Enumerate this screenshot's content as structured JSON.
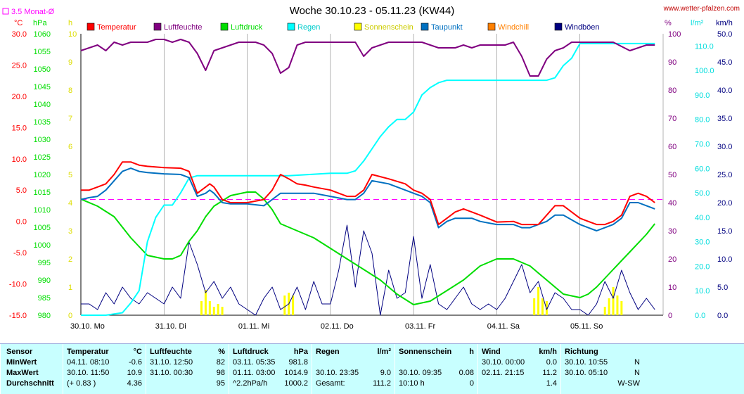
{
  "title": "Woche 30.10.23 - 05.11.23 (KW44)",
  "website": "www.wetter-pfalzen.com",
  "monthly_avg_label": "3.5 Monat-Ø",
  "colors": {
    "temperatur": "#ff0000",
    "luftfeuchte": "#800080",
    "luftdruck": "#00dd00",
    "regen": "#00ffff",
    "sonnenschein": "#ffff00",
    "taupunkt": "#0070c0",
    "windchill": "#ff8000",
    "windboeen": "#000080",
    "monthly_avg": "#ff00ff"
  },
  "axes": {
    "temp": {
      "unit": "°C",
      "ticks": [
        "30.0",
        "25.0",
        "20.0",
        "15.0",
        "10.0",
        "5.0",
        "0.0",
        "-5.0",
        "-10.0",
        "-15.0"
      ],
      "min": -15,
      "max": 30
    },
    "pressure": {
      "unit": "hPa",
      "ticks": [
        "1060",
        "1055",
        "1050",
        "1045",
        "1040",
        "1035",
        "1030",
        "1025",
        "1020",
        "1015",
        "1010",
        "1005",
        "1000",
        "995",
        "990",
        "985",
        "980"
      ],
      "min": 980,
      "max": 1060
    },
    "sun": {
      "unit": "h",
      "ticks": [
        "10",
        "9",
        "8",
        "7",
        "6",
        "5",
        "4",
        "3",
        "2",
        "1",
        "0"
      ],
      "min": 0,
      "max": 10
    },
    "humidity": {
      "unit": "%",
      "ticks": [
        "100",
        "90",
        "80",
        "70",
        "60",
        "50",
        "40",
        "30",
        "20",
        "10",
        "0"
      ],
      "min": 0,
      "max": 100
    },
    "rain": {
      "unit": "l/m²",
      "ticks": [
        "110.0",
        "100.0",
        "90.0",
        "80.0",
        "70.0",
        "60.0",
        "50.0",
        "40.0",
        "30.0",
        "20.0",
        "10.0",
        "0.0"
      ],
      "min": 0,
      "max": 115
    },
    "wind": {
      "unit": "km/h",
      "ticks": [
        "50.0",
        "45.0",
        "40.0",
        "35.0",
        "30.0",
        "25.0",
        "20.0",
        "15.0",
        "10.0",
        "5.0",
        "0.0"
      ],
      "min": 0,
      "max": 50
    },
    "x_labels": [
      "30.10. Mo",
      "31.10. Di",
      "01.11. Mi",
      "02.11. Do",
      "03.11. Fr",
      "04.11. Sa",
      "05.11. So"
    ]
  },
  "legend": [
    {
      "key": "temperatur",
      "label": "Temperatur",
      "color": "#ff0000"
    },
    {
      "key": "luftfeuchte",
      "label": "Luftfeuchte",
      "color": "#800080"
    },
    {
      "key": "luftdruck",
      "label": "Luftdruck",
      "color": "#00dd00"
    },
    {
      "key": "regen",
      "label": "Regen",
      "color": "#00ffff"
    },
    {
      "key": "sonnenschein",
      "label": "Sonnenschein",
      "color": "#ffff00"
    },
    {
      "key": "taupunkt",
      "label": "Taupunkt",
      "color": "#0070c0"
    },
    {
      "key": "windchill",
      "label": "Windchill",
      "color": "#ff8000"
    },
    {
      "key": "windboeen",
      "label": "Windböen",
      "color": "#000080"
    }
  ],
  "chart_data": {
    "type": "line",
    "title": "Woche 30.10.23 - 05.11.23 (KW44)",
    "x_range_days": [
      0,
      7
    ],
    "x_labels": [
      "30.10. Mo",
      "31.10. Di",
      "01.11. Mi",
      "02.11. Do",
      "03.11. Fr",
      "04.11. Sa",
      "05.11. So"
    ],
    "monthly_avg_temp": 3.5,
    "series": [
      {
        "name": "Temperatur",
        "unit": "°C",
        "x": [
          0,
          0.1,
          0.2,
          0.3,
          0.4,
          0.5,
          0.6,
          0.7,
          0.8,
          1.0,
          1.2,
          1.3,
          1.4,
          1.5,
          1.55,
          1.6,
          1.7,
          1.8,
          1.9,
          2.0,
          2.2,
          2.3,
          2.4,
          2.5,
          2.6,
          2.7,
          2.8,
          3.0,
          3.2,
          3.3,
          3.4,
          3.5,
          3.7,
          3.9,
          4.0,
          4.1,
          4.2,
          4.3,
          4.4,
          4.5,
          4.6,
          4.7,
          4.8,
          5.0,
          5.2,
          5.3,
          5.4,
          5.5,
          5.6,
          5.7,
          5.8,
          6.0,
          6.1,
          6.2,
          6.3,
          6.4,
          6.5,
          6.6,
          6.7,
          6.8,
          6.9
        ],
        "y": [
          5.0,
          5.0,
          5.5,
          6.0,
          7.5,
          9.5,
          9.5,
          9.0,
          8.8,
          8.6,
          8.5,
          8.0,
          4.5,
          5.5,
          6.0,
          5.5,
          3.5,
          3.0,
          3.0,
          3.0,
          3.5,
          5.0,
          7.5,
          6.8,
          6.0,
          5.8,
          5.5,
          5.0,
          4.0,
          4.0,
          5.0,
          7.5,
          6.8,
          6.0,
          5.0,
          4.5,
          3.5,
          -0.5,
          0.5,
          1.5,
          2.0,
          1.5,
          1.0,
          -0.1,
          0.0,
          -0.5,
          -0.5,
          -0.5,
          1.0,
          2.5,
          2.5,
          0.5,
          0.0,
          -0.5,
          -0.5,
          0.0,
          1.0,
          4.0,
          4.5,
          4.0,
          3.0
        ]
      },
      {
        "name": "Luftfeuchte",
        "unit": "%",
        "x": [
          0,
          0.1,
          0.2,
          0.3,
          0.4,
          0.5,
          0.6,
          0.7,
          0.8,
          0.9,
          1.0,
          1.1,
          1.2,
          1.3,
          1.4,
          1.5,
          1.6,
          1.7,
          1.8,
          1.9,
          2.0,
          2.1,
          2.2,
          2.3,
          2.4,
          2.5,
          2.6,
          2.7,
          2.8,
          3.0,
          3.1,
          3.2,
          3.3,
          3.4,
          3.5,
          3.7,
          3.9,
          4.0,
          4.1,
          4.3,
          4.5,
          4.6,
          4.7,
          4.8,
          4.9,
          5.0,
          5.1,
          5.2,
          5.3,
          5.4,
          5.5,
          5.6,
          5.7,
          5.8,
          5.9,
          6.0,
          6.2,
          6.4,
          6.6,
          6.8,
          6.9
        ],
        "y": [
          94,
          95,
          96,
          94,
          97,
          96,
          97,
          97,
          97,
          98,
          98,
          97,
          98,
          97,
          93,
          87,
          94,
          95,
          96,
          97,
          97,
          97,
          96,
          93,
          86,
          88,
          96,
          97,
          97,
          97,
          97,
          97,
          97,
          92,
          95,
          97,
          97,
          97,
          97,
          95,
          95,
          96,
          95,
          96,
          96,
          96,
          96,
          97,
          92,
          85,
          85,
          91,
          94,
          95,
          97,
          97,
          97,
          97,
          94,
          96,
          96
        ]
      },
      {
        "name": "Luftdruck",
        "unit": "hPa",
        "x": [
          0,
          0.2,
          0.4,
          0.6,
          0.8,
          1.0,
          1.1,
          1.2,
          1.3,
          1.4,
          1.5,
          1.6,
          1.8,
          2.0,
          2.1,
          2.2,
          2.3,
          2.4,
          2.6,
          2.8,
          3.0,
          3.2,
          3.4,
          3.6,
          3.8,
          4.0,
          4.2,
          4.4,
          4.6,
          4.8,
          5.0,
          5.2,
          5.4,
          5.6,
          5.8,
          6.0,
          6.1,
          6.2,
          6.4,
          6.6,
          6.8,
          6.9
        ],
        "y": [
          1013,
          1011,
          1008,
          1002,
          997,
          996,
          996,
          997,
          1001,
          1004,
          1008,
          1011,
          1014,
          1015,
          1015,
          1013,
          1010,
          1006,
          1004,
          1002,
          999,
          996,
          993,
          990,
          986,
          983,
          984,
          987,
          990,
          994,
          996,
          996,
          994,
          990,
          986,
          985,
          986,
          988,
          993,
          998,
          1003,
          1006
        ]
      },
      {
        "name": "Regen",
        "unit": "l/m²",
        "x": [
          0,
          0.3,
          0.5,
          0.6,
          0.7,
          0.8,
          0.9,
          1.0,
          1.1,
          1.2,
          1.3,
          1.4,
          1.6,
          2.0,
          2.5,
          3.0,
          3.2,
          3.3,
          3.4,
          3.5,
          3.6,
          3.7,
          3.8,
          3.9,
          4.0,
          4.1,
          4.2,
          4.3,
          4.4,
          4.6,
          4.8,
          5.0,
          5.2,
          5.4,
          5.6,
          5.7,
          5.8,
          5.9,
          6.0,
          6.2,
          6.4,
          6.6,
          6.9
        ],
        "y": [
          0,
          0,
          1,
          5,
          10,
          30,
          40,
          45,
          45,
          50,
          56,
          57,
          57,
          57,
          57,
          58,
          58,
          59,
          63,
          68,
          73,
          77,
          80,
          80,
          83,
          90,
          93,
          95,
          96,
          96,
          96,
          96,
          96,
          96,
          96,
          97,
          102,
          105,
          111,
          111,
          111,
          111,
          111
        ]
      },
      {
        "name": "Taupunkt",
        "unit": "°C",
        "x": [
          0,
          0.1,
          0.2,
          0.3,
          0.4,
          0.5,
          0.6,
          0.7,
          0.8,
          1.0,
          1.2,
          1.3,
          1.4,
          1.5,
          1.55,
          1.6,
          1.7,
          1.8,
          1.9,
          2.0,
          2.2,
          2.3,
          2.4,
          2.5,
          2.6,
          2.7,
          2.8,
          3.0,
          3.2,
          3.3,
          3.4,
          3.5,
          3.7,
          3.9,
          4.0,
          4.1,
          4.2,
          4.3,
          4.4,
          4.5,
          4.6,
          4.7,
          4.8,
          5.0,
          5.2,
          5.3,
          5.4,
          5.5,
          5.6,
          5.7,
          5.8,
          6.0,
          6.1,
          6.2,
          6.3,
          6.4,
          6.5,
          6.6,
          6.7,
          6.8,
          6.9
        ],
        "y": [
          3.5,
          3.8,
          4.0,
          5.0,
          6.5,
          8.0,
          8.5,
          8.0,
          7.8,
          7.6,
          7.5,
          7.0,
          4.0,
          4.5,
          5.0,
          4.5,
          3.0,
          2.8,
          2.8,
          2.8,
          2.5,
          3.5,
          4.5,
          4.5,
          4.5,
          4.5,
          4.5,
          4.0,
          3.5,
          3.5,
          4.5,
          6.5,
          6.0,
          5.0,
          4.5,
          4.0,
          3.0,
          -1.0,
          0.0,
          0.5,
          0.5,
          0.5,
          0.0,
          -0.5,
          -0.5,
          -1.0,
          -1.0,
          -0.5,
          0.0,
          1.0,
          1.0,
          -0.5,
          -1.0,
          -1.5,
          -1.0,
          -0.5,
          0.5,
          3.0,
          3.0,
          2.5,
          2.0
        ]
      },
      {
        "name": "Windböen",
        "unit": "km/h",
        "x": [
          0,
          0.1,
          0.2,
          0.3,
          0.4,
          0.5,
          0.6,
          0.7,
          0.8,
          0.9,
          1.0,
          1.1,
          1.2,
          1.3,
          1.4,
          1.5,
          1.6,
          1.7,
          1.8,
          1.9,
          2.0,
          2.1,
          2.2,
          2.3,
          2.4,
          2.5,
          2.6,
          2.7,
          2.8,
          2.9,
          3.0,
          3.1,
          3.2,
          3.3,
          3.4,
          3.5,
          3.6,
          3.7,
          3.8,
          3.9,
          4.0,
          4.1,
          4.2,
          4.3,
          4.4,
          4.5,
          4.6,
          4.7,
          4.8,
          4.9,
          5.0,
          5.1,
          5.2,
          5.3,
          5.4,
          5.5,
          5.6,
          5.7,
          5.8,
          5.9,
          6.0,
          6.1,
          6.2,
          6.3,
          6.4,
          6.5,
          6.6,
          6.7,
          6.8,
          6.9
        ],
        "y": [
          2,
          2,
          1,
          4,
          2,
          5,
          3,
          2,
          4,
          3,
          2,
          5,
          3,
          13,
          9,
          4,
          6,
          3,
          5,
          2,
          1,
          0,
          3,
          5,
          1,
          2,
          5,
          1,
          6,
          2,
          2,
          8,
          16,
          5,
          15,
          11,
          0,
          8,
          3,
          4,
          14,
          3,
          9,
          2,
          1,
          3,
          5,
          2,
          1,
          2,
          1,
          3,
          6,
          9,
          4,
          6,
          1,
          4,
          3,
          1,
          1,
          0,
          2,
          6,
          3,
          8,
          4,
          1,
          3,
          1
        ]
      },
      {
        "name": "Sonnenschein",
        "unit": "h",
        "x": [
          1.45,
          1.5,
          1.55,
          1.6,
          1.65,
          1.7,
          2.45,
          2.5,
          2.55,
          5.45,
          5.5,
          5.55,
          5.6,
          6.3,
          6.35,
          6.4,
          6.45,
          6.5
        ],
        "y": [
          0.5,
          0.9,
          0.5,
          0.3,
          0.4,
          0.3,
          0.7,
          0.8,
          0.7,
          0.6,
          1.0,
          0.6,
          0.5,
          0.3,
          0.6,
          1.0,
          0.7,
          0.5
        ]
      }
    ]
  },
  "stats": {
    "sensor": {
      "header": "Sensor",
      "rows": [
        "MinWert",
        "MaxWert",
        "Durchschnitt"
      ]
    },
    "temperatur": {
      "header": "Temperatur",
      "unit": "°C",
      "rows": [
        [
          "04.11.  08:10",
          "-0.6"
        ],
        [
          "30.10.  11:50",
          "10.9"
        ],
        [
          "(+ 0.83 )",
          "4.36"
        ]
      ]
    },
    "luftfeuchte": {
      "header": "Luftfeuchte",
      "unit": "%",
      "rows": [
        [
          "31.10.  12:50",
          "82"
        ],
        [
          "31.10.  00:30",
          "98"
        ],
        [
          "",
          "95"
        ]
      ]
    },
    "luftdruck": {
      "header": "Luftdruck",
      "unit": "hPa",
      "rows": [
        [
          "03.11.  05:35",
          "981.8"
        ],
        [
          "01.11.  03:00",
          "1014.9"
        ],
        [
          "^2.2hPa/h",
          "1000.2"
        ]
      ]
    },
    "regen": {
      "header": "Regen",
      "unit": "l/m²",
      "rows": [
        [
          "",
          ""
        ],
        [
          "30.10.  23:35",
          "9.0"
        ],
        [
          "Gesamt:",
          "111.2"
        ]
      ]
    },
    "sonnenschein": {
      "header": "Sonnenschein",
      "unit": "h",
      "rows": [
        [
          "",
          ""
        ],
        [
          "30.10.  09:35",
          "0.08"
        ],
        [
          "10:10 h",
          "0"
        ]
      ]
    },
    "wind": {
      "header": "Wind",
      "unit": "km/h",
      "rows": [
        [
          "30.10.  00:00",
          "0.0"
        ],
        [
          "02.11.  21:15",
          "11.2"
        ],
        [
          "",
          "1.4"
        ]
      ]
    },
    "richtung": {
      "header": "Richtung",
      "unit": "",
      "rows": [
        [
          "30.10.  10:55",
          "N"
        ],
        [
          "30.10.  05:10",
          "N"
        ],
        [
          "",
          "W-SW"
        ]
      ]
    }
  }
}
